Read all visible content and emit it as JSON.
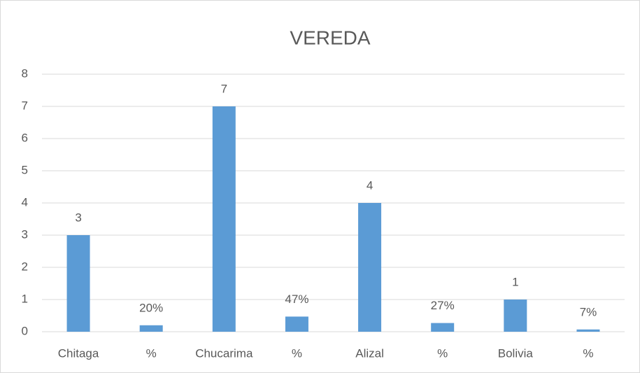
{
  "chart_data": {
    "type": "bar",
    "title": "VEREDA",
    "categories": [
      "Chitaga",
      "%",
      "Chucarima",
      "%",
      "Alizal",
      "%",
      "Bolivia",
      "%"
    ],
    "values": [
      3,
      0.2,
      7,
      0.47,
      4,
      0.27,
      1,
      0.07
    ],
    "value_labels": [
      "3",
      "20%",
      "7",
      "47%",
      "4",
      "27%",
      "1",
      "7%"
    ],
    "color": "#5b9bd5",
    "ylim": [
      0,
      8
    ],
    "yticks": [
      0,
      1,
      2,
      3,
      4,
      5,
      6,
      7,
      8
    ],
    "grid": true
  }
}
